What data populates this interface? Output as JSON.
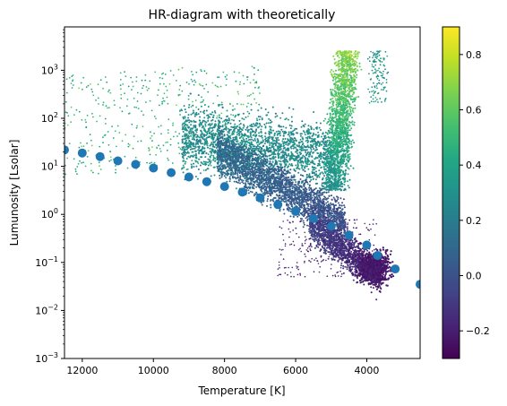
{
  "chart_data": {
    "type": "scatter",
    "title": "HR-diagram with theoretically",
    "xlabel": "Temperature [K]",
    "ylabel": "Lumunosity [Lsolar]",
    "x_axis_inverted": true,
    "xlim": [
      12500,
      2500
    ],
    "ylim": [
      0.001,
      8000
    ],
    "yscale": "log",
    "x_ticks": [
      {
        "value": 12000,
        "label": "12000"
      },
      {
        "value": 10000,
        "label": "10000"
      },
      {
        "value": 8000,
        "label": "8000"
      },
      {
        "value": 6000,
        "label": "6000"
      },
      {
        "value": 4000,
        "label": "4000"
      }
    ],
    "y_ticks": [
      {
        "value": 0.001,
        "base": "10",
        "exp": "−3"
      },
      {
        "value": 0.01,
        "base": "10",
        "exp": "−2"
      },
      {
        "value": 0.1,
        "base": "10",
        "exp": "−1"
      },
      {
        "value": 1,
        "base": "10",
        "exp": "0"
      },
      {
        "value": 10,
        "base": "10",
        "exp": "1"
      },
      {
        "value": 100,
        "base": "10",
        "exp": "2"
      },
      {
        "value": 1000,
        "base": "10",
        "exp": "3"
      }
    ],
    "grid": false,
    "colorbar": {
      "range": [
        -0.3,
        0.9
      ],
      "colormap": "viridis",
      "ticks": [
        {
          "value": -0.2,
          "label": "−0.2"
        },
        {
          "value": 0.0,
          "label": "0.0"
        },
        {
          "value": 0.2,
          "label": "0.2"
        },
        {
          "value": 0.4,
          "label": "0.4"
        },
        {
          "value": 0.6,
          "label": "0.6"
        },
        {
          "value": 0.8,
          "label": "0.8"
        }
      ]
    },
    "observed_density": {
      "description_marker": "tiny dots colored by colorbar value",
      "regions": [
        {
          "temp_range": [
            12500,
            8500
          ],
          "lum_range": [
            8,
            600
          ],
          "color_value": 0.45
        },
        {
          "temp_range": [
            9000,
            5000
          ],
          "lum_range": [
            10,
            200
          ],
          "color_value": 0.3
        },
        {
          "temp_range": [
            8000,
            4300
          ],
          "lum_range": [
            1,
            30
          ],
          "color_value": 0.1
        },
        {
          "temp_range": [
            5500,
            3600
          ],
          "lum_range": [
            0.04,
            1
          ],
          "color_value": -0.15
        },
        {
          "temp_range": [
            5200,
            4300
          ],
          "lum_range": [
            5,
            2500
          ],
          "color_value": 0.65
        }
      ]
    },
    "theoretical_series": {
      "color": "#1f77b4",
      "x": [
        12500,
        12000,
        11500,
        11000,
        10500,
        10000,
        9500,
        9000,
        8500,
        8000,
        7500,
        7000,
        6500,
        6000,
        5500,
        5000,
        4500,
        4000,
        3700,
        3200,
        2500
      ],
      "y": [
        22,
        19,
        16,
        13,
        11,
        9.2,
        7.4,
        6.0,
        4.8,
        3.8,
        2.9,
        2.2,
        1.6,
        1.15,
        0.82,
        0.57,
        0.37,
        0.23,
        0.14,
        0.073,
        0.035
      ]
    }
  }
}
